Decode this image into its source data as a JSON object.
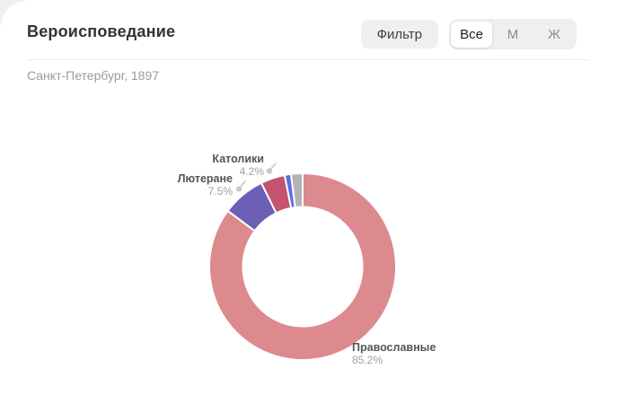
{
  "header": {
    "title": "Вероисповедание",
    "subtitle": "Санкт-Петербург, 1897",
    "filter_button_label": "Фильтр",
    "segmented_options": [
      {
        "label": "Все",
        "selected": true
      },
      {
        "label": "М",
        "selected": false
      },
      {
        "label": "Ж",
        "selected": false
      }
    ]
  },
  "chart_data": {
    "type": "pie",
    "variant": "donut",
    "title": "Вероисповедание",
    "subtitle": "Санкт-Петербург, 1897",
    "start_angle_deg": 0,
    "direction": "clockwise",
    "hole_ratio": 0.64,
    "segments": [
      {
        "label": "Православные",
        "pct_label": "85.2%",
        "value": 85.2,
        "color": "#dd8a8f"
      },
      {
        "label": "Лютеране",
        "pct_label": "7.5%",
        "value": 7.5,
        "color": "#6a5eb5"
      },
      {
        "label": "Католики",
        "pct_label": "4.2%",
        "value": 4.2,
        "color": "#c4536f"
      },
      {
        "label": "",
        "pct_label": "",
        "value": 1.1,
        "color": "#5b6ee0"
      },
      {
        "label": "",
        "pct_label": "",
        "value": 2.0,
        "color": "#b5b4b4"
      }
    ],
    "colors": {
      "slice_gap_stroke": "#ffffff",
      "pin": "#c8c8c8"
    }
  }
}
